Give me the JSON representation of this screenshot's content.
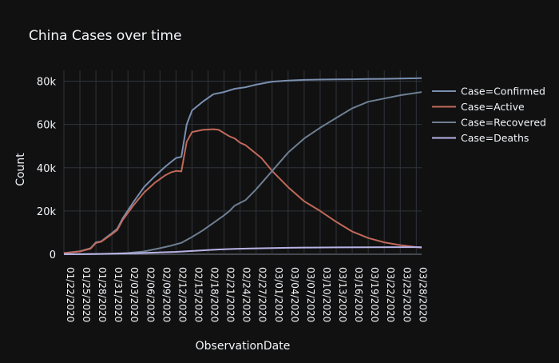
{
  "chart_data": {
    "type": "line",
    "title": "China Cases over time",
    "xlabel": "ObservationDate",
    "ylabel": "Count",
    "x_start": "2020-01-22",
    "x_end": "2020-03-29",
    "x_ticks": [
      "01/22/2020",
      "01/25/2020",
      "01/28/2020",
      "01/31/2020",
      "02/03/2020",
      "02/06/2020",
      "02/09/2020",
      "02/12/2020",
      "02/15/2020",
      "02/18/2020",
      "02/21/2020",
      "02/24/2020",
      "02/27/2020",
      "03/01/2020",
      "03/04/2020",
      "03/07/2020",
      "03/10/2020",
      "03/13/2020",
      "03/16/2020",
      "03/19/2020",
      "03/22/2020",
      "03/25/2020",
      "03/28/2020"
    ],
    "y_ticks": [
      0,
      20000,
      40000,
      60000,
      80000
    ],
    "y_tick_labels": [
      "0",
      "20k",
      "40k",
      "60k",
      "80k"
    ],
    "ylim": [
      0,
      85000
    ],
    "grid": true,
    "legend_position": "top-right",
    "series": [
      {
        "name": "Case=Confirmed",
        "color": "#7a8fb0",
        "points": [
          [
            "2020-01-22",
            550
          ],
          [
            "2020-01-25",
            1400
          ],
          [
            "2020-01-27",
            2800
          ],
          [
            "2020-01-28",
            5500
          ],
          [
            "2020-01-29",
            6000
          ],
          [
            "2020-01-31",
            9800
          ],
          [
            "2020-02-01",
            11800
          ],
          [
            "2020-02-02",
            16600
          ],
          [
            "2020-02-04",
            24000
          ],
          [
            "2020-02-06",
            31000
          ],
          [
            "2020-02-08",
            36000
          ],
          [
            "2020-02-10",
            40500
          ],
          [
            "2020-02-11",
            42500
          ],
          [
            "2020-02-12",
            44500
          ],
          [
            "2020-02-13",
            45000
          ],
          [
            "2020-02-14",
            60000
          ],
          [
            "2020-02-15",
            66500
          ],
          [
            "2020-02-17",
            70500
          ],
          [
            "2020-02-19",
            74000
          ],
          [
            "2020-02-21",
            75000
          ],
          [
            "2020-02-23",
            76500
          ],
          [
            "2020-02-25",
            77200
          ],
          [
            "2020-02-27",
            78400
          ],
          [
            "2020-03-01",
            79800
          ],
          [
            "2020-03-04",
            80300
          ],
          [
            "2020-03-07",
            80600
          ],
          [
            "2020-03-10",
            80750
          ],
          [
            "2020-03-13",
            80850
          ],
          [
            "2020-03-16",
            80900
          ],
          [
            "2020-03-19",
            81000
          ],
          [
            "2020-03-22",
            81100
          ],
          [
            "2020-03-25",
            81200
          ],
          [
            "2020-03-29",
            81400
          ]
        ]
      },
      {
        "name": "Case=Active",
        "color": "#c0695a",
        "points": [
          [
            "2020-01-22",
            500
          ],
          [
            "2020-01-25",
            1300
          ],
          [
            "2020-01-27",
            2600
          ],
          [
            "2020-01-28",
            5200
          ],
          [
            "2020-01-29",
            5800
          ],
          [
            "2020-01-31",
            9300
          ],
          [
            "2020-02-01",
            11200
          ],
          [
            "2020-02-02",
            15800
          ],
          [
            "2020-02-04",
            22500
          ],
          [
            "2020-02-06",
            28500
          ],
          [
            "2020-02-08",
            33000
          ],
          [
            "2020-02-10",
            36500
          ],
          [
            "2020-02-11",
            37800
          ],
          [
            "2020-02-12",
            38500
          ],
          [
            "2020-02-13",
            38300
          ],
          [
            "2020-02-14",
            52000
          ],
          [
            "2020-02-15",
            56500
          ],
          [
            "2020-02-17",
            57500
          ],
          [
            "2020-02-19",
            57800
          ],
          [
            "2020-02-20",
            57500
          ],
          [
            "2020-02-21",
            56000
          ],
          [
            "2020-02-22",
            54500
          ],
          [
            "2020-02-23",
            53500
          ],
          [
            "2020-02-24",
            51500
          ],
          [
            "2020-02-25",
            50500
          ],
          [
            "2020-02-26",
            48500
          ],
          [
            "2020-02-28",
            44500
          ],
          [
            "2020-03-01",
            38500
          ],
          [
            "2020-03-04",
            31000
          ],
          [
            "2020-03-07",
            24500
          ],
          [
            "2020-03-10",
            20000
          ],
          [
            "2020-03-13",
            15000
          ],
          [
            "2020-03-16",
            10500
          ],
          [
            "2020-03-19",
            7500
          ],
          [
            "2020-03-22",
            5500
          ],
          [
            "2020-03-25",
            4200
          ],
          [
            "2020-03-29",
            3000
          ]
        ]
      },
      {
        "name": "Case=Recovered",
        "color": "#6e7f93",
        "points": [
          [
            "2020-01-22",
            30
          ],
          [
            "2020-01-25",
            50
          ],
          [
            "2020-01-28",
            100
          ],
          [
            "2020-01-31",
            250
          ],
          [
            "2020-02-03",
            600
          ],
          [
            "2020-02-06",
            1300
          ],
          [
            "2020-02-09",
            2800
          ],
          [
            "2020-02-11",
            3900
          ],
          [
            "2020-02-13",
            5300
          ],
          [
            "2020-02-15",
            8000
          ],
          [
            "2020-02-17",
            11000
          ],
          [
            "2020-02-19",
            14500
          ],
          [
            "2020-02-21",
            18000
          ],
          [
            "2020-02-22",
            20000
          ],
          [
            "2020-02-23",
            22500
          ],
          [
            "2020-02-25",
            25000
          ],
          [
            "2020-02-27",
            30000
          ],
          [
            "2020-03-01",
            38500
          ],
          [
            "2020-03-04",
            47000
          ],
          [
            "2020-03-07",
            53500
          ],
          [
            "2020-03-10",
            58500
          ],
          [
            "2020-03-13",
            63000
          ],
          [
            "2020-03-16",
            67500
          ],
          [
            "2020-03-19",
            70500
          ],
          [
            "2020-03-22",
            72000
          ],
          [
            "2020-03-25",
            73500
          ],
          [
            "2020-03-29",
            75000
          ]
        ]
      },
      {
        "name": "Case=Deaths",
        "color": "#b8b4e6",
        "points": [
          [
            "2020-01-22",
            20
          ],
          [
            "2020-01-25",
            50
          ],
          [
            "2020-01-28",
            130
          ],
          [
            "2020-01-31",
            250
          ],
          [
            "2020-02-03",
            400
          ],
          [
            "2020-02-06",
            600
          ],
          [
            "2020-02-09",
            900
          ],
          [
            "2020-02-12",
            1100
          ],
          [
            "2020-02-14",
            1400
          ],
          [
            "2020-02-17",
            1800
          ],
          [
            "2020-02-20",
            2200
          ],
          [
            "2020-02-23",
            2500
          ],
          [
            "2020-02-26",
            2700
          ],
          [
            "2020-03-01",
            2900
          ],
          [
            "2020-03-04",
            3000
          ],
          [
            "2020-03-08",
            3100
          ],
          [
            "2020-03-13",
            3180
          ],
          [
            "2020-03-19",
            3250
          ],
          [
            "2020-03-25",
            3280
          ],
          [
            "2020-03-29",
            3300
          ]
        ]
      }
    ]
  }
}
